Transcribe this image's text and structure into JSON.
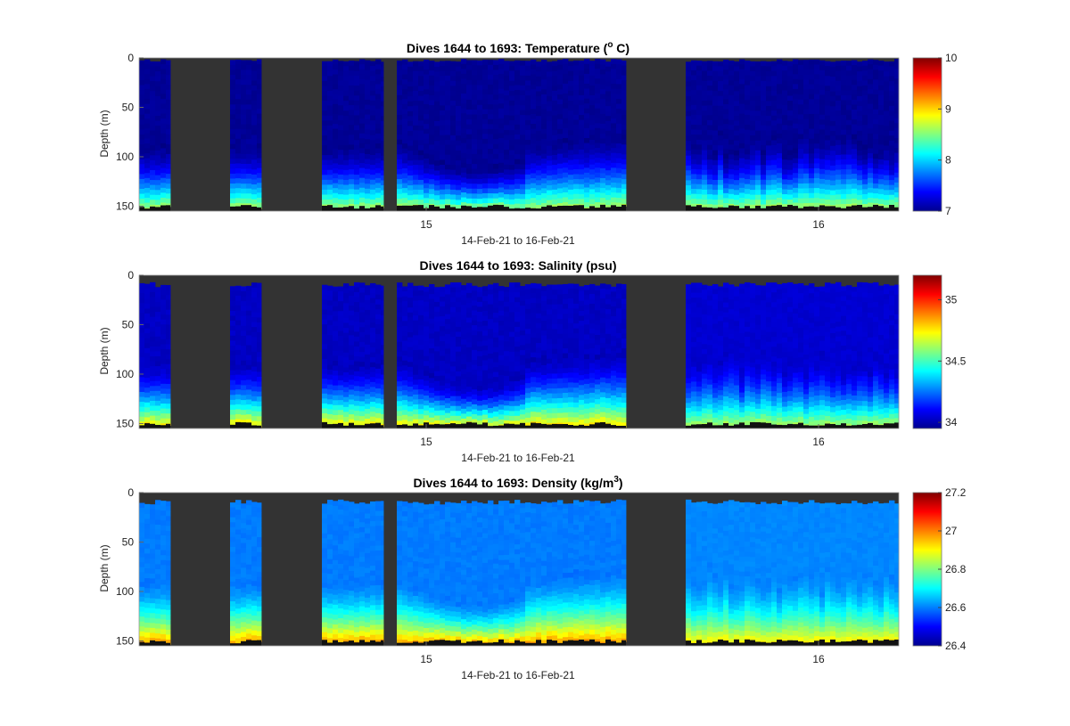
{
  "chart_data": [
    {
      "type": "heatmap",
      "title": "Dives 1644 to 1693: Temperature (",
      "title_sup": "o",
      "title_end": " C)",
      "xlabel": "14-Feb-21 to 16-Feb-21",
      "ylabel": "Depth (m)",
      "x_ticks": [
        "15",
        "16"
      ],
      "y_ticks": [
        "0",
        "50",
        "100",
        "150"
      ],
      "ylim": [
        0,
        155
      ],
      "colorbar": {
        "ticks": [
          "7",
          "8",
          "9",
          "10"
        ],
        "range": [
          7,
          10
        ]
      },
      "values": {
        "surface_min": 7.0,
        "deep_max": 8.7,
        "pattern": "near-uniform ~7.2 in upper layer, warming to ~8.0–8.7 below ~120 m"
      }
    },
    {
      "type": "heatmap",
      "title": "Dives 1644 to 1693: Salinity (psu)",
      "xlabel": "14-Feb-21 to 16-Feb-21",
      "ylabel": "Depth (m)",
      "x_ticks": [
        "15",
        "16"
      ],
      "y_ticks": [
        "0",
        "50",
        "100",
        "150"
      ],
      "ylim": [
        0,
        155
      ],
      "colorbar": {
        "ticks": [
          "34",
          "34.5",
          "35"
        ],
        "range": [
          33.95,
          35.2
        ]
      },
      "values": {
        "surface_min": 34.0,
        "deep_max": 34.8,
        "pattern": "fresh ~34.0 upper layer, saltier ~34.5–34.8 near bottom"
      }
    },
    {
      "type": "heatmap",
      "title": "Dives 1644 to 1693: Density (kg/m",
      "title_sup": "3",
      "title_end": ")",
      "xlabel": "14-Feb-21 to 16-Feb-21",
      "ylabel": "Depth (m)",
      "x_ticks": [
        "15",
        "16"
      ],
      "y_ticks": [
        "0",
        "50",
        "100",
        "150"
      ],
      "ylim": [
        0,
        155
      ],
      "colorbar": {
        "ticks": [
          "26.4",
          "26.6",
          "26.8",
          "27",
          "27.2"
        ],
        "range": [
          26.4,
          27.2
        ]
      },
      "values": {
        "surface_min": 26.58,
        "deep_max": 27.0,
        "pattern": "~26.6 upper layer, increasing to ~26.9–27.0 near bottom"
      }
    }
  ],
  "colors": {
    "no_data": "#333333",
    "colormap": "jet"
  }
}
